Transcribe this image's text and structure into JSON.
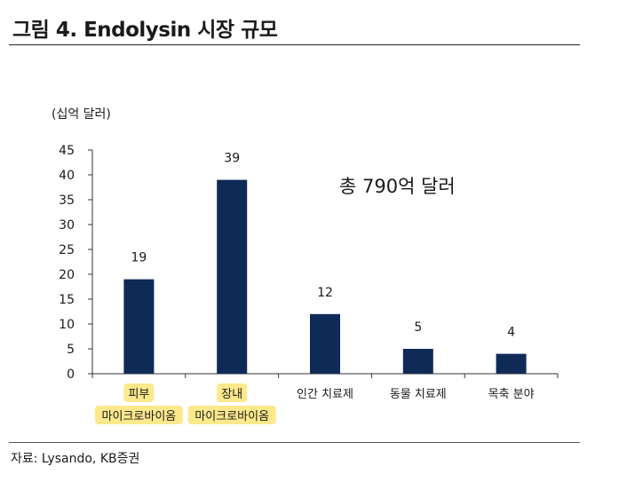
{
  "figure": {
    "title": "그림 4. Endolysin 시장 규모",
    "source": "자료: Lysando, KB증권"
  },
  "chart_data": {
    "type": "bar",
    "unit_label": "(십억 달러)",
    "annotation": "총 790억 달러",
    "categories": [
      [
        "피부",
        "마이크로바이옴"
      ],
      [
        "장내",
        "마이크로바이옴"
      ],
      [
        "인간 치료제"
      ],
      [
        "동물 치료제"
      ],
      [
        "목축 분야"
      ]
    ],
    "values": [
      19,
      39,
      12,
      5,
      4
    ],
    "highlighted_categories": [
      0,
      1
    ],
    "ylim": [
      0,
      45
    ],
    "yticks": [
      0,
      5,
      10,
      15,
      20,
      25,
      30,
      35,
      40,
      45
    ],
    "grid": false,
    "bar_color": "#0f2a57",
    "highlight_color": "#fde98c"
  }
}
